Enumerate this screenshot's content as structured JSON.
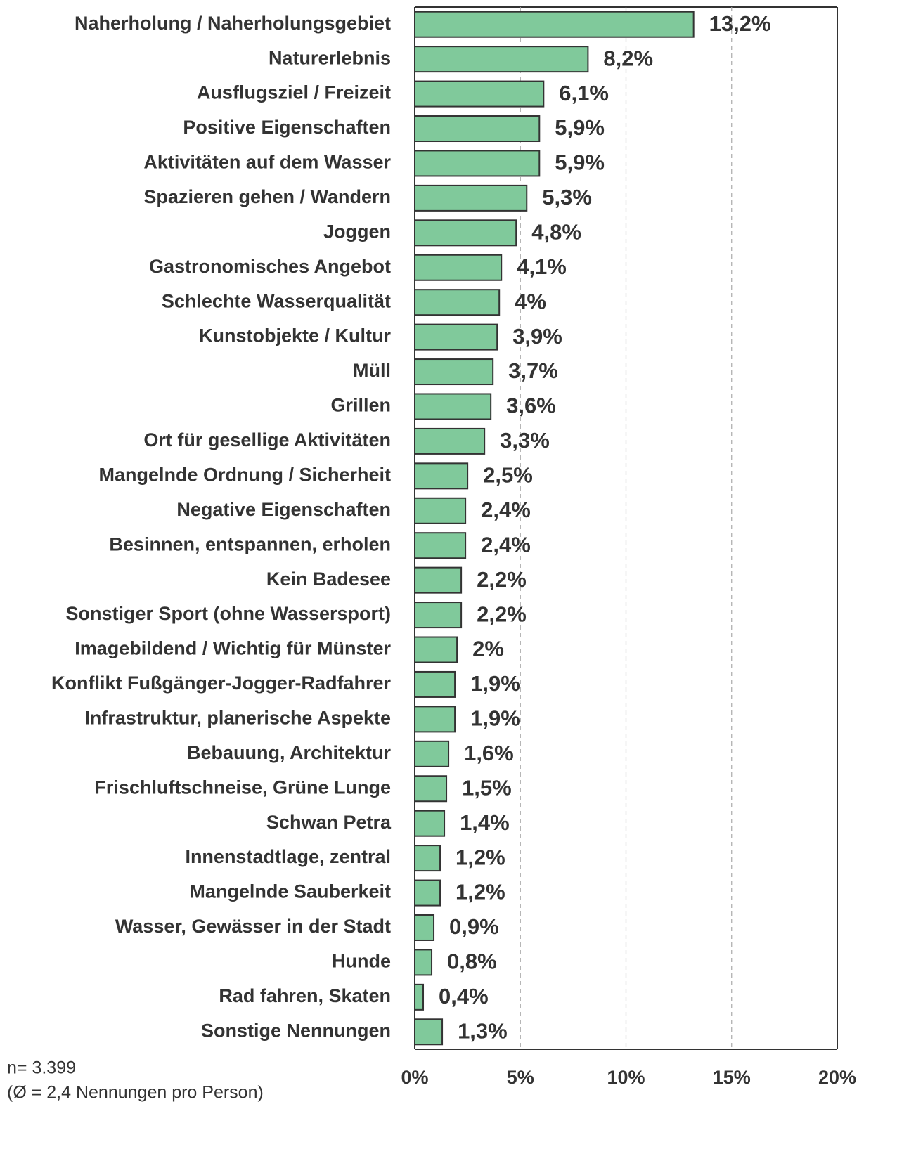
{
  "chart_data": {
    "type": "barh",
    "categories": [
      "Naherholung / Naherholungsgebiet",
      "Naturerlebnis",
      "Ausflugsziel / Freizeit",
      "Positive Eigenschaften",
      "Aktivitäten auf dem Wasser",
      "Spazieren gehen / Wandern",
      "Joggen",
      "Gastronomisches Angebot",
      "Schlechte Wasserqualität",
      "Kunstobjekte / Kultur",
      "Müll",
      "Grillen",
      "Ort für gesellige Aktivitäten",
      "Mangelnde Ordnung / Sicherheit",
      "Negative Eigenschaften",
      "Besinnen, entspannen, erholen",
      "Kein Badesee",
      "Sonstiger Sport (ohne Wassersport)",
      "Imagebildend / Wichtig für Münster",
      "Konflikt Fußgänger-Jogger-Radfahrer",
      "Infrastruktur, planerische Aspekte",
      "Bebauung, Architektur",
      "Frischluftschneise, Grüne Lunge",
      "Schwan Petra",
      "Innenstadtlage, zentral",
      "Mangelnde Sauberkeit",
      "Wasser, Gewässer in der Stadt",
      "Hunde",
      "Rad fahren, Skaten",
      "Sonstige Nennungen"
    ],
    "values": [
      13.2,
      8.2,
      6.1,
      5.9,
      5.9,
      5.3,
      4.8,
      4.1,
      4,
      3.9,
      3.7,
      3.6,
      3.3,
      2.5,
      2.4,
      2.4,
      2.2,
      2.2,
      2,
      1.9,
      1.9,
      1.6,
      1.5,
      1.4,
      1.2,
      1.2,
      0.9,
      0.8,
      0.4,
      1.3
    ],
    "value_labels": [
      "13,2%",
      "8,2%",
      "6,1%",
      "5,9%",
      "5,9%",
      "5,3%",
      "4,8%",
      "4,1%",
      "4%",
      "3,9%",
      "3,7%",
      "3,6%",
      "3,3%",
      "2,5%",
      "2,4%",
      "2,4%",
      "2,2%",
      "2,2%",
      "2%",
      "1,9%",
      "1,9%",
      "1,6%",
      "1,5%",
      "1,4%",
      "1,2%",
      "1,2%",
      "0,9%",
      "0,8%",
      "0,4%",
      "1,3%"
    ],
    "color": "#80c99b",
    "xlim": [
      0,
      20
    ],
    "xticks": [
      {
        "value": 0,
        "label": "0%"
      },
      {
        "value": 5,
        "label": "5%"
      },
      {
        "value": 10,
        "label": "10%"
      },
      {
        "value": 15,
        "label": "15%"
      },
      {
        "value": 20,
        "label": "20%"
      }
    ],
    "grid": true,
    "notes": [
      "n= 3.399",
      "(Ø = 2,4 Nennungen pro Person)"
    ]
  }
}
